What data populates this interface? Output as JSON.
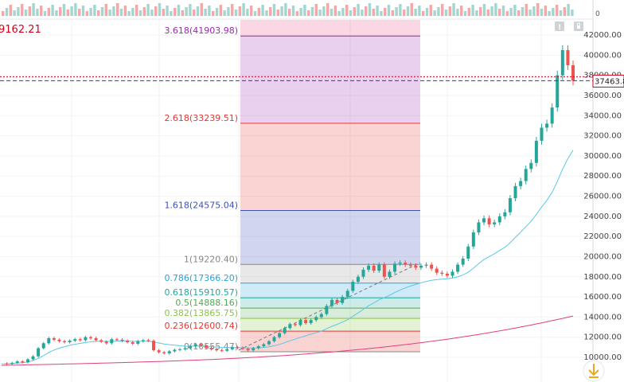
{
  "header": {
    "price_fragment": "9162.21",
    "price_color": "#d0021b"
  },
  "toolbar": {
    "icon_a": "info-icon",
    "icon_b": "lock-icon"
  },
  "scroll_button": {
    "icon": "arrow-down-icon"
  },
  "price_axis": {
    "top_tick": "0",
    "labels": [
      "42000.00",
      "40000.00",
      "38000.00",
      "36000.00",
      "34000.00",
      "32000.00",
      "30000.00",
      "28000.00",
      "26000.00",
      "24000.00",
      "22000.00",
      "20000.00",
      "18000.00",
      "16000.00",
      "14000.00",
      "12000.00",
      "10000.00"
    ],
    "last_price_label": "37463.8",
    "last_price_color": "#d0021b"
  },
  "chart_data": {
    "type": "candlestick",
    "ylim": [
      9000,
      43500
    ],
    "fib_levels": [
      {
        "label": "3.618(41903.98)",
        "value": 41903.98,
        "color": "#9c27b0"
      },
      {
        "label": "2.618(33239.51)",
        "value": 33239.51,
        "color": "#e53935"
      },
      {
        "label": "1.618(24575.04)",
        "value": 24575.04,
        "color": "#3f51b5"
      },
      {
        "label": "1(19220.40)",
        "value": 19220.4,
        "color": "#888888"
      },
      {
        "label": "0.786(17366.20)",
        "value": 17366.2,
        "color": "#29a3d9"
      },
      {
        "label": "0.618(15910.57)",
        "value": 15910.57,
        "color": "#26a69a"
      },
      {
        "label": "0.5(14888.16)",
        "value": 14888.16,
        "color": "#4caf50"
      },
      {
        "label": "0.382(13865.75)",
        "value": 13865.75,
        "color": "#8bc34a"
      },
      {
        "label": "0.236(12600.74)",
        "value": 12600.74,
        "color": "#e53935"
      },
      {
        "label": "0(10555.47)",
        "value": 10555.47,
        "color": "#888888"
      }
    ],
    "last_price": 37463.8,
    "price_line": [
      9400,
      9350,
      9450,
      9600,
      9500,
      9800,
      10100,
      10900,
      11400,
      11900,
      11750,
      11600,
      11500,
      11650,
      11800,
      11700,
      12000,
      11900,
      11700,
      11550,
      11400,
      11800,
      11750,
      11650,
      11500,
      11350,
      11600,
      11700,
      11650,
      10700,
      10500,
      10400,
      10600,
      10750,
      10800,
      10900,
      11100,
      11300,
      11150,
      10950,
      10800,
      10700,
      10650,
      10800,
      11000,
      10950,
      10850,
      10700,
      10900,
      11100,
      11300,
      11600,
      12000,
      12400,
      12900,
      13300,
      13200,
      13700,
      13400,
      13700,
      14000,
      14300,
      15100,
      15700,
      15400,
      16000,
      16600,
      17500,
      18000,
      18700,
      19100,
      18600,
      19200,
      18000,
      18500,
      19300,
      19400,
      19200,
      19100,
      18900,
      19100,
      19200,
      18800,
      18400,
      18300,
      18100,
      18500,
      19200,
      19800,
      21000,
      22400,
      23400,
      23800,
      23200,
      23400,
      24000,
      24400,
      25800,
      27000,
      27500,
      28700,
      29300,
      31500,
      32800,
      33200,
      34800,
      38000,
      40500,
      39000,
      37463.8
    ],
    "ma_fast": [
      9350,
      9350,
      9380,
      9430,
      9460,
      9540,
      9670,
      9900,
      10170,
      10480,
      10730,
      10920,
      11060,
      11190,
      11300,
      11380,
      11470,
      11540,
      11580,
      11590,
      11580,
      11600,
      11620,
      11630,
      11620,
      11590,
      11590,
      11600,
      11610,
      11520,
      11420,
      11330,
      11260,
      11200,
      11150,
      11110,
      11110,
      11120,
      11120,
      11100,
      11070,
      11030,
      10990,
      10970,
      10970,
      10970,
      10960,
      10930,
      10930,
      10950,
      10990,
      11050,
      11150,
      11280,
      11450,
      11640,
      11800,
      11990,
      12140,
      12290,
      12450,
      12610,
      12840,
      13080,
      13270,
      13490,
      13740,
      14080,
      14410,
      14770,
      15120,
      15400,
      15710,
      15930,
      16160,
      16430,
      16680,
      16890,
      17080,
      17240,
      17400,
      17540,
      17640,
      17710,
      17770,
      17800,
      17870,
      17990,
      18170,
      18460,
      18850,
      19290,
      19710,
      20000,
      20290,
      20610,
      20930,
      21380,
      21900,
      22410,
      22970,
      23500,
      24190,
      24920,
      25590,
      26380,
      27450,
      28680,
      29710,
      30560
    ]
  }
}
